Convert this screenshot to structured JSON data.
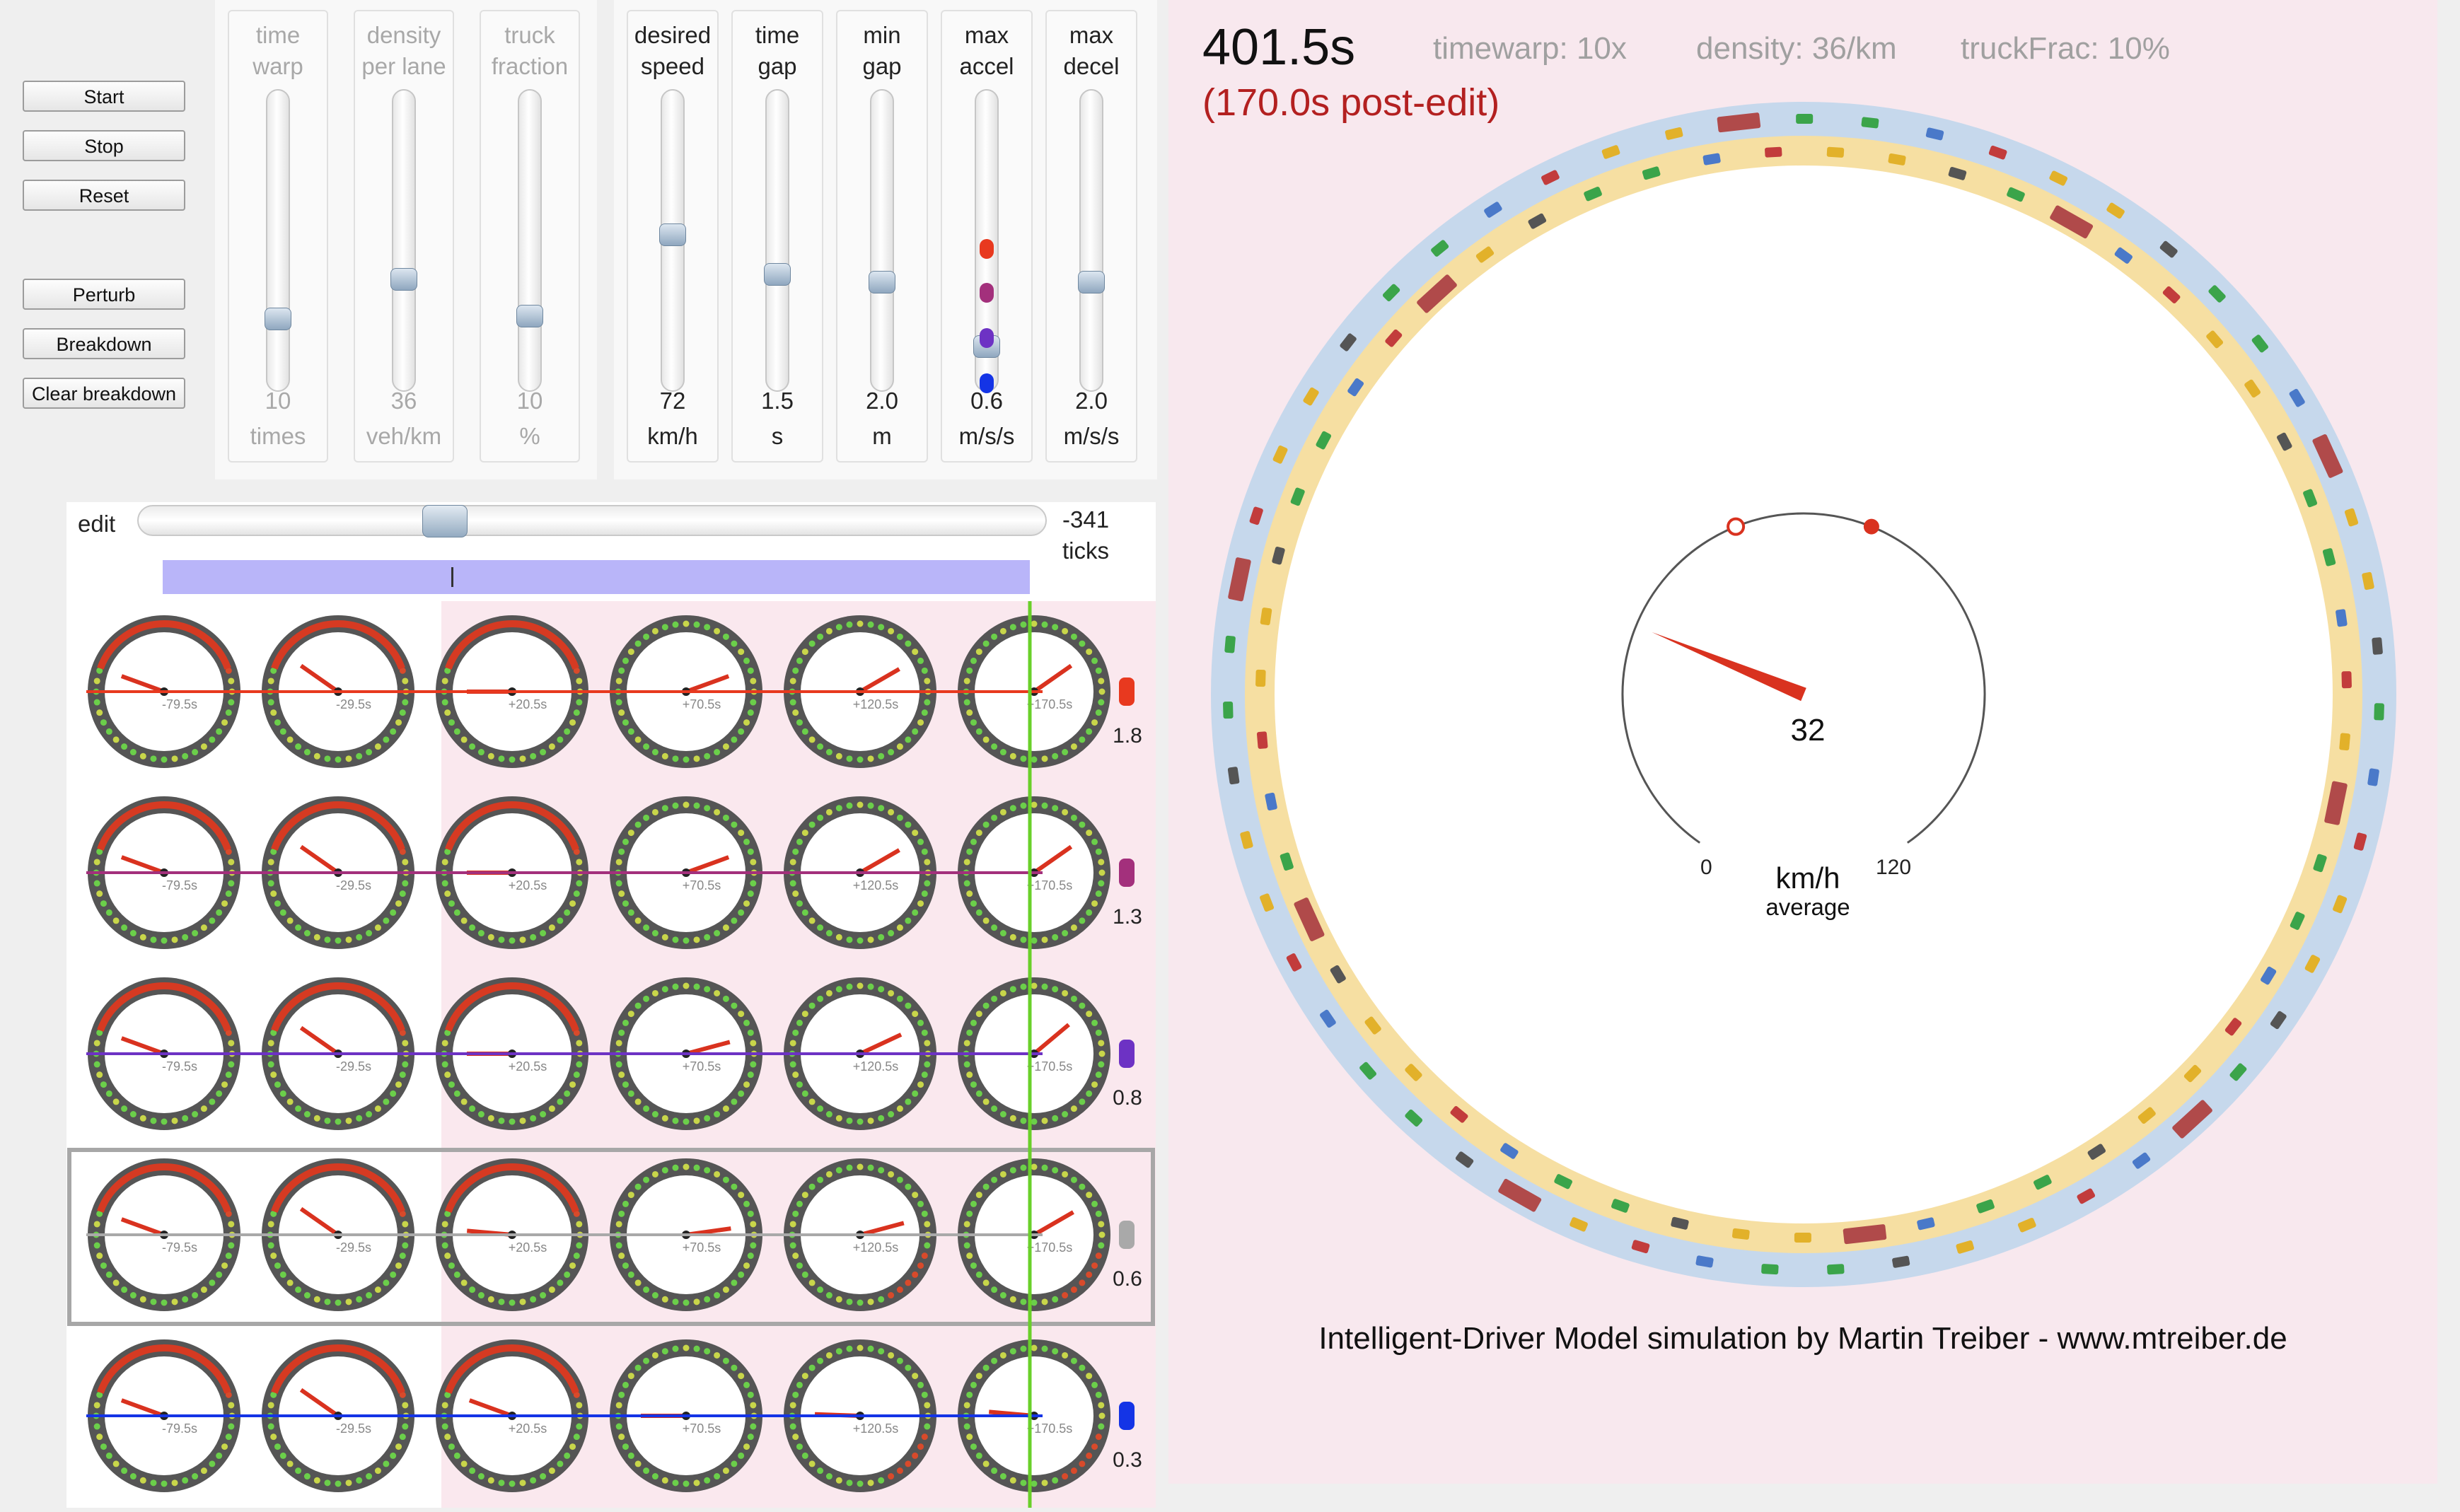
{
  "controls": {
    "buttons": [
      "Start",
      "Stop",
      "Reset",
      "Perturb",
      "Breakdown",
      "Clear breakdown"
    ]
  },
  "sliders_left": [
    {
      "label1": "time",
      "label2": "warp",
      "value": "10",
      "unit": "times",
      "level": 0.22
    },
    {
      "label1": "density",
      "label2": "per lane",
      "value": "36",
      "unit": "veh/km",
      "level": 0.36
    },
    {
      "label1": "truck",
      "label2": "fraction",
      "value": "10",
      "unit": "%",
      "level": 0.23
    }
  ],
  "sliders_right": [
    {
      "label1": "desired",
      "label2": "speed",
      "value": "72",
      "unit": "km/h",
      "level": 0.52
    },
    {
      "label1": "time",
      "label2": "gap",
      "value": "1.5",
      "unit": "s",
      "level": 0.38
    },
    {
      "label1": "min",
      "label2": "gap",
      "value": "2.0",
      "unit": "m",
      "level": 0.35
    },
    {
      "label1": "max",
      "label2": "accel",
      "value": "0.6",
      "unit": "m/s/s",
      "level": 0.12
    },
    {
      "label1": "max",
      "label2": "decel",
      "value": "2.0",
      "unit": "m/s/s",
      "level": 0.35
    }
  ],
  "edit": {
    "label": "edit",
    "ticks_value": "-341",
    "ticks_unit": "ticks",
    "slider_level": 0.33
  },
  "gauge_times": [
    "-79.5s",
    "-29.5s",
    "+20.5s",
    "+70.5s",
    "+120.5s",
    "+170.5s"
  ],
  "gauge_rows": [
    {
      "value": "1.8",
      "color": "#e8391f",
      "needles": [
        200,
        215,
        180,
        340,
        330,
        325
      ]
    },
    {
      "value": "1.3",
      "color": "#a3307c",
      "needles": [
        200,
        215,
        180,
        340,
        330,
        325
      ]
    },
    {
      "value": "0.8",
      "color": "#6d32c4",
      "needles": [
        200,
        215,
        180,
        345,
        335,
        320
      ]
    },
    {
      "value": "0.6",
      "color": "#a9a9a9",
      "needles": [
        200,
        215,
        185,
        352,
        345,
        330
      ]
    },
    {
      "value": "0.3",
      "color": "#1434e6",
      "needles": [
        200,
        215,
        200,
        180,
        182,
        185
      ]
    }
  ],
  "sim": {
    "time": "401.5s",
    "post_edit": "(170.0s post-edit)",
    "timewarp": "timewarp: 10x",
    "density": "density: 36/km",
    "truckfrac": "truckFrac: 10%",
    "speedometer": {
      "value": "32",
      "min_label": "0",
      "max_label": "120",
      "unit": "km/h",
      "sublabel": "average",
      "speed_kmh": 32
    },
    "credit": "Intelligent-Driver Model simulation by Martin Treiber - www.mtreiber.de"
  }
}
